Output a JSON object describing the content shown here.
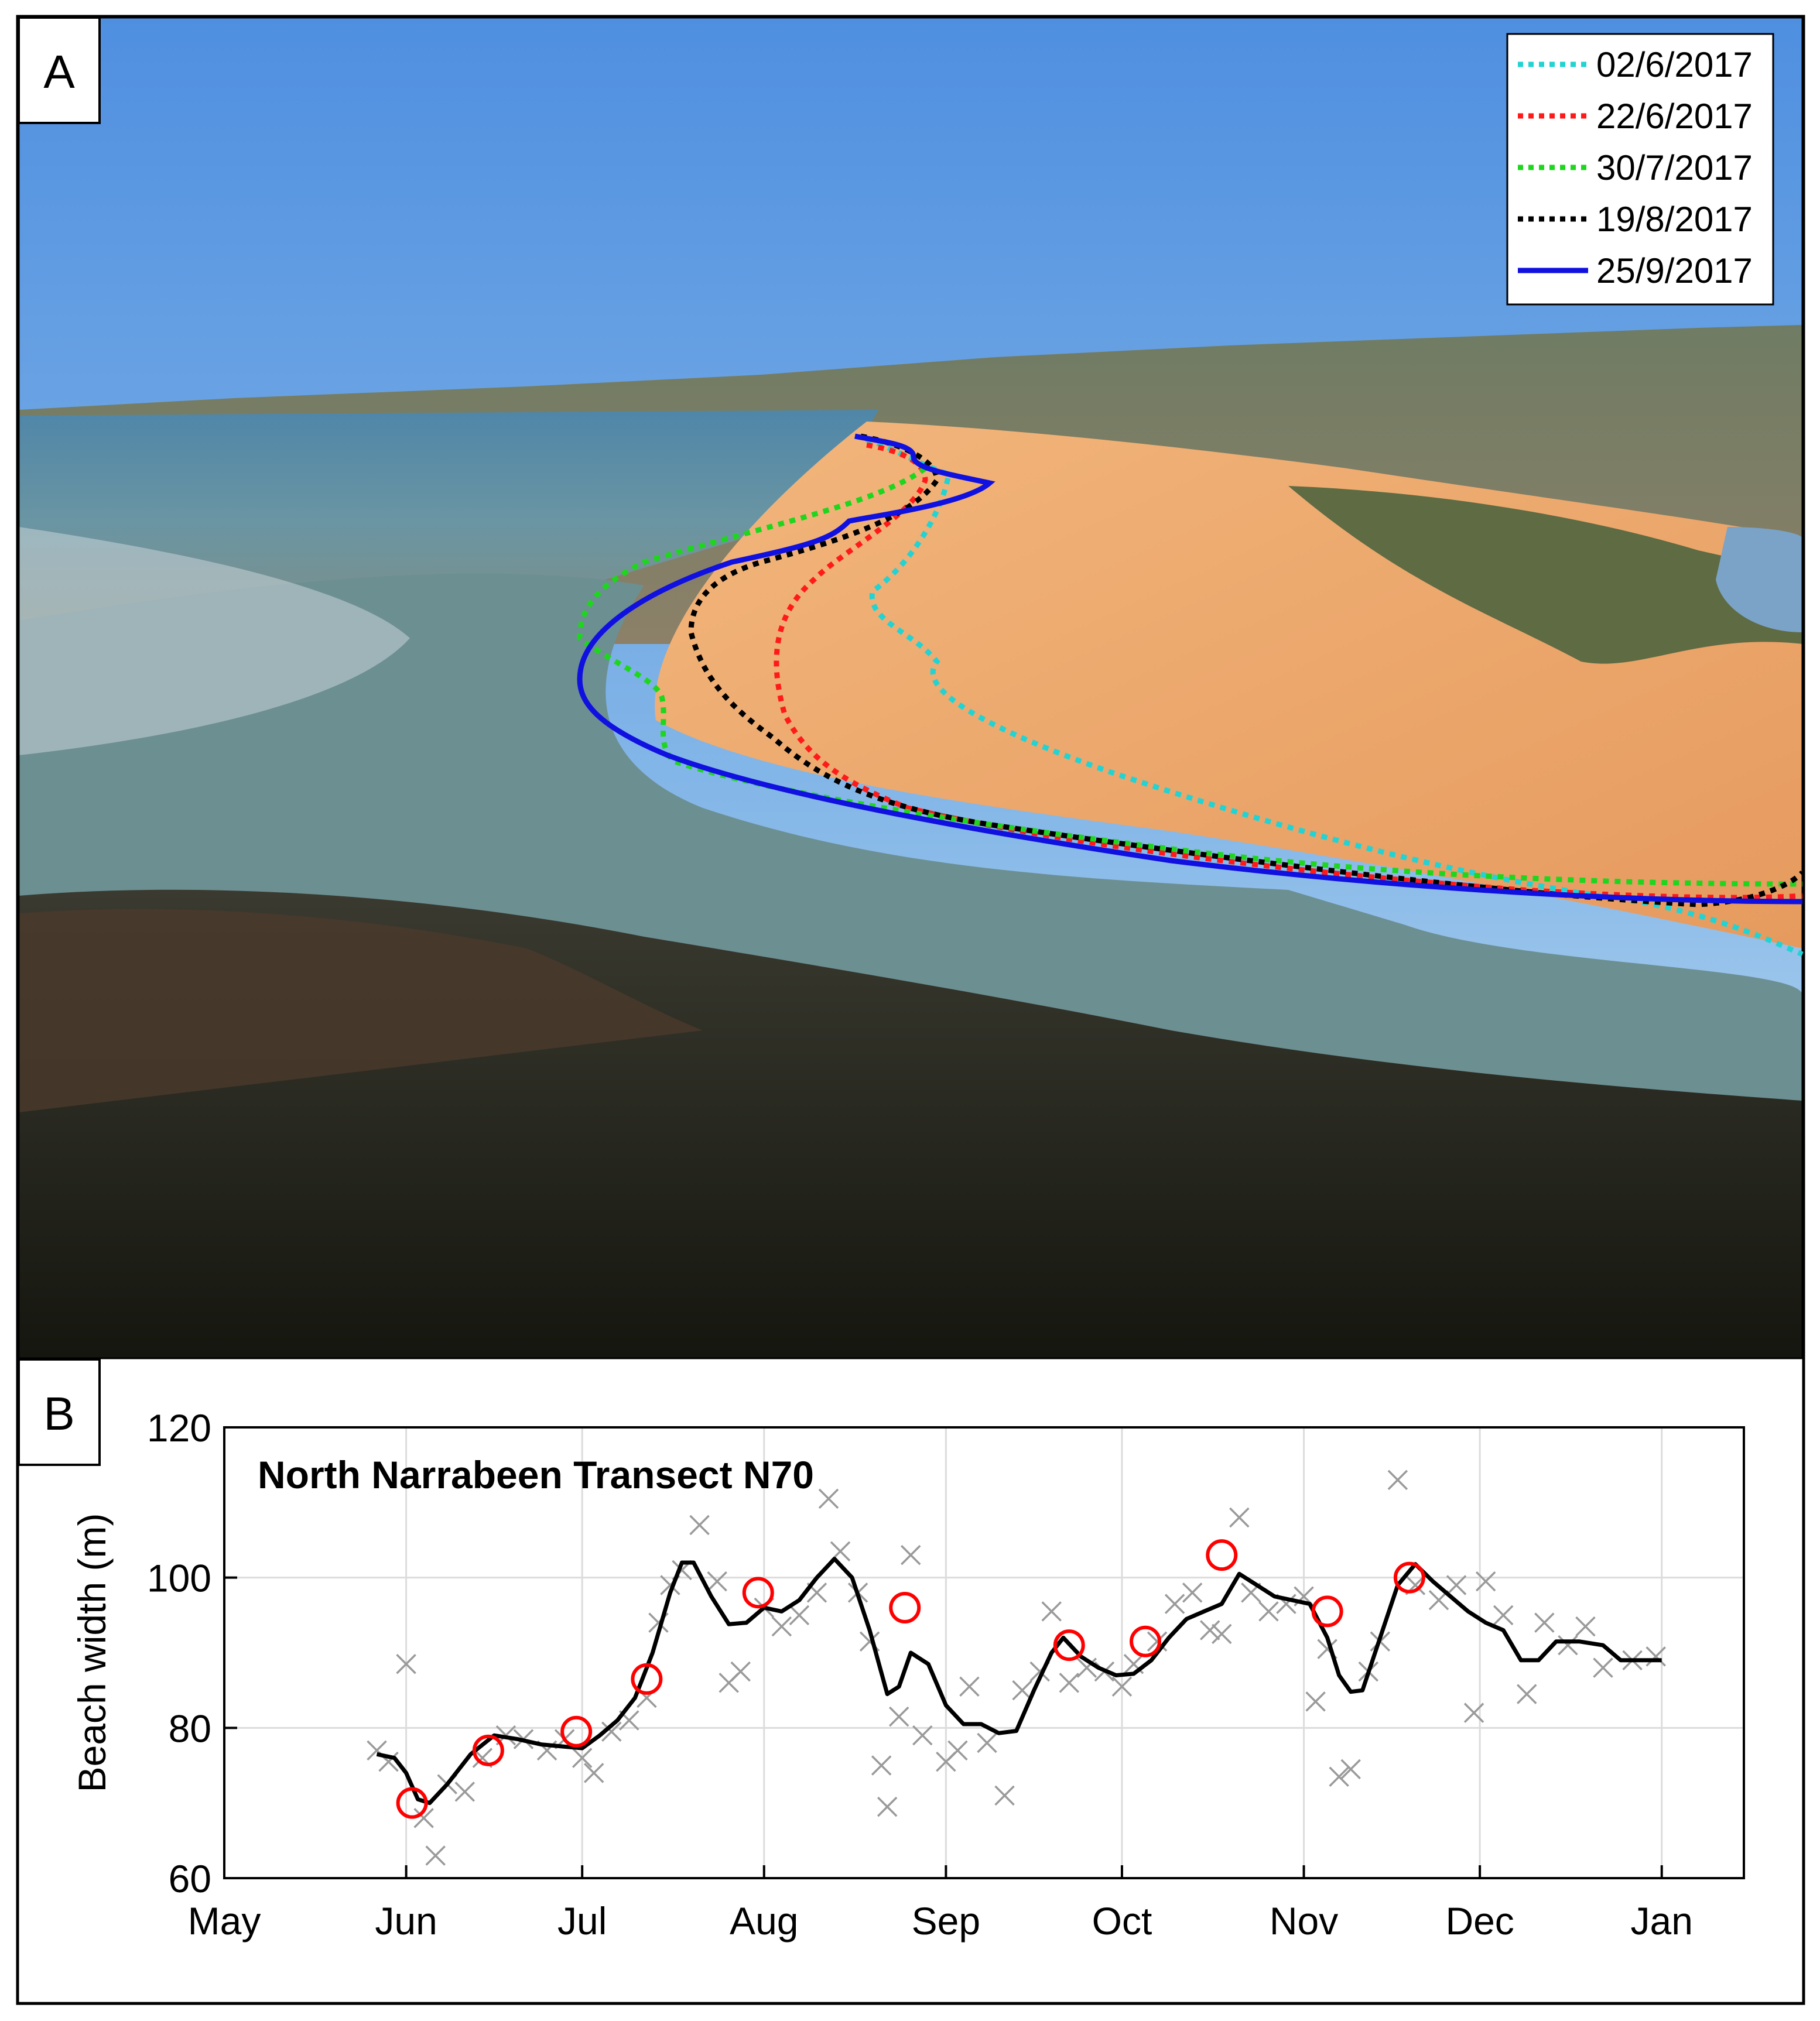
{
  "panel_a": {
    "label": "A",
    "legend": [
      {
        "label": "02/6/2017",
        "color": "#22d3d3",
        "style": "dotted"
      },
      {
        "label": "22/6/2017",
        "color": "#ff1a1a",
        "style": "dotted"
      },
      {
        "label": "30/7/2017",
        "color": "#1ed61e",
        "style": "dotted"
      },
      {
        "label": "19/8/2017",
        "color": "#000000",
        "style": "dotted"
      },
      {
        "label": "25/9/2017",
        "color": "#1010e0",
        "style": "solid"
      }
    ]
  },
  "panel_b": {
    "label": "B"
  },
  "chart_data": {
    "type": "line",
    "title": "North Narrabeen Transect N70",
    "xlabel": "",
    "ylabel": "Beach width (m)",
    "ylim": [
      60,
      120
    ],
    "yticks": [
      60,
      80,
      100,
      120
    ],
    "x_axis": {
      "start": "2017-05-01",
      "end": "2018-01-15",
      "tick_dates": [
        "2017-05-01",
        "2017-06-01",
        "2017-07-01",
        "2017-08-01",
        "2017-09-01",
        "2017-10-01",
        "2017-11-01",
        "2017-12-01",
        "2018-01-01"
      ],
      "tick_labels": [
        "May",
        "Jun",
        "Jul",
        "Aug",
        "Sep",
        "Oct",
        "Nov",
        "Dec",
        "Jan"
      ]
    },
    "grid": true,
    "series": [
      {
        "kind": "line",
        "color": "#000000",
        "points": [
          [
            "2017-05-27",
            76.5
          ],
          [
            "2017-05-30",
            76
          ],
          [
            "2017-06-01",
            74
          ],
          [
            "2017-06-03",
            70.5
          ],
          [
            "2017-06-05",
            70
          ],
          [
            "2017-06-08",
            72.5
          ],
          [
            "2017-06-12",
            76.5
          ],
          [
            "2017-06-16",
            79
          ],
          [
            "2017-06-20",
            78.5
          ],
          [
            "2017-06-24",
            77.8
          ],
          [
            "2017-06-28",
            77.5
          ],
          [
            "2017-07-01",
            77.3
          ],
          [
            "2017-07-04",
            79
          ],
          [
            "2017-07-07",
            81
          ],
          [
            "2017-07-10",
            84
          ],
          [
            "2017-07-13",
            90
          ],
          [
            "2017-07-16",
            98
          ],
          [
            "2017-07-18",
            102
          ],
          [
            "2017-07-20",
            102
          ],
          [
            "2017-07-23",
            97.5
          ],
          [
            "2017-07-26",
            93.8
          ],
          [
            "2017-07-29",
            94
          ],
          [
            "2017-08-01",
            96
          ],
          [
            "2017-08-04",
            95.5
          ],
          [
            "2017-08-07",
            97
          ],
          [
            "2017-08-10",
            100
          ],
          [
            "2017-08-13",
            102.5
          ],
          [
            "2017-08-16",
            100
          ],
          [
            "2017-08-19",
            93
          ],
          [
            "2017-08-22",
            84.5
          ],
          [
            "2017-08-24",
            85.5
          ],
          [
            "2017-08-26",
            90
          ],
          [
            "2017-08-29",
            88.5
          ],
          [
            "2017-09-01",
            83
          ],
          [
            "2017-09-04",
            80.5
          ],
          [
            "2017-09-07",
            80.5
          ],
          [
            "2017-09-10",
            79.3
          ],
          [
            "2017-09-13",
            79.6
          ],
          [
            "2017-09-16",
            85
          ],
          [
            "2017-09-19",
            90
          ],
          [
            "2017-09-21",
            92
          ],
          [
            "2017-09-24",
            89.5
          ],
          [
            "2017-09-27",
            88
          ],
          [
            "2017-09-30",
            87
          ],
          [
            "2017-10-03",
            87.2
          ],
          [
            "2017-10-06",
            89
          ],
          [
            "2017-10-09",
            92
          ],
          [
            "2017-10-12",
            94.5
          ],
          [
            "2017-10-15",
            95.5
          ],
          [
            "2017-10-18",
            96.5
          ],
          [
            "2017-10-21",
            100.5
          ],
          [
            "2017-10-24",
            99
          ],
          [
            "2017-10-27",
            97.5
          ],
          [
            "2017-10-30",
            97
          ],
          [
            "2017-11-02",
            96.5
          ],
          [
            "2017-11-05",
            92
          ],
          [
            "2017-11-07",
            87
          ],
          [
            "2017-11-09",
            84.8
          ],
          [
            "2017-11-11",
            85
          ],
          [
            "2017-11-14",
            92
          ],
          [
            "2017-11-17",
            99
          ],
          [
            "2017-11-20",
            101.8
          ],
          [
            "2017-11-23",
            99.5
          ],
          [
            "2017-11-26",
            97.5
          ],
          [
            "2017-11-29",
            95.5
          ],
          [
            "2017-12-02",
            94
          ],
          [
            "2017-12-05",
            93
          ],
          [
            "2017-12-08",
            89
          ],
          [
            "2017-12-11",
            89
          ],
          [
            "2017-12-14",
            91.5
          ],
          [
            "2017-12-18",
            91.5
          ],
          [
            "2017-12-22",
            91
          ],
          [
            "2017-12-25",
            89
          ],
          [
            "2017-12-29",
            89
          ],
          [
            "2018-01-01",
            89
          ]
        ]
      },
      {
        "kind": "scatter",
        "marker": "circle",
        "color": "#ff0000",
        "points": [
          [
            "2017-06-02",
            70
          ],
          [
            "2017-06-15",
            77
          ],
          [
            "2017-06-30",
            79.5
          ],
          [
            "2017-07-12",
            86.5
          ],
          [
            "2017-07-31",
            98
          ],
          [
            "2017-08-25",
            96
          ],
          [
            "2017-09-22",
            91
          ],
          [
            "2017-10-05",
            91.5
          ],
          [
            "2017-10-18",
            103
          ],
          [
            "2017-11-05",
            95.5
          ],
          [
            "2017-11-19",
            100
          ]
        ]
      },
      {
        "kind": "scatter",
        "marker": "x",
        "color": "#9a9a9a",
        "points": [
          [
            "2017-05-27",
            77
          ],
          [
            "2017-05-29",
            75.5
          ],
          [
            "2017-06-01",
            88.5
          ],
          [
            "2017-06-04",
            68
          ],
          [
            "2017-06-06",
            63
          ],
          [
            "2017-06-08",
            72.5
          ],
          [
            "2017-06-11",
            71.5
          ],
          [
            "2017-06-14",
            76
          ],
          [
            "2017-06-18",
            79
          ],
          [
            "2017-06-21",
            78.5
          ],
          [
            "2017-06-25",
            77
          ],
          [
            "2017-06-28",
            78.5
          ],
          [
            "2017-07-01",
            76
          ],
          [
            "2017-07-03",
            74
          ],
          [
            "2017-07-06",
            79.5
          ],
          [
            "2017-07-09",
            81
          ],
          [
            "2017-07-12",
            84
          ],
          [
            "2017-07-14",
            94
          ],
          [
            "2017-07-16",
            99
          ],
          [
            "2017-07-18",
            101
          ],
          [
            "2017-07-21",
            107
          ],
          [
            "2017-07-24",
            99.5
          ],
          [
            "2017-07-26",
            86
          ],
          [
            "2017-07-28",
            87.5
          ],
          [
            "2017-08-01",
            96
          ],
          [
            "2017-08-04",
            93.5
          ],
          [
            "2017-08-07",
            95
          ],
          [
            "2017-08-10",
            98
          ],
          [
            "2017-08-12",
            110.5
          ],
          [
            "2017-08-14",
            103.5
          ],
          [
            "2017-08-17",
            98
          ],
          [
            "2017-08-19",
            91.5
          ],
          [
            "2017-08-21",
            75
          ],
          [
            "2017-08-22",
            69.5
          ],
          [
            "2017-08-24",
            81.5
          ],
          [
            "2017-08-26",
            103
          ],
          [
            "2017-08-28",
            79
          ],
          [
            "2017-09-01",
            75.5
          ],
          [
            "2017-09-03",
            77
          ],
          [
            "2017-09-05",
            85.5
          ],
          [
            "2017-09-08",
            78
          ],
          [
            "2017-09-11",
            71
          ],
          [
            "2017-09-14",
            85
          ],
          [
            "2017-09-17",
            87.5
          ],
          [
            "2017-09-19",
            95.5
          ],
          [
            "2017-09-22",
            86
          ],
          [
            "2017-09-25",
            88
          ],
          [
            "2017-09-28",
            87.5
          ],
          [
            "2017-10-01",
            85.5
          ],
          [
            "2017-10-03",
            88.5
          ],
          [
            "2017-10-07",
            91.5
          ],
          [
            "2017-10-10",
            96.5
          ],
          [
            "2017-10-13",
            98
          ],
          [
            "2017-10-16",
            93
          ],
          [
            "2017-10-18",
            92.5
          ],
          [
            "2017-10-21",
            108
          ],
          [
            "2017-10-23",
            98
          ],
          [
            "2017-10-26",
            95.5
          ],
          [
            "2017-10-29",
            96.5
          ],
          [
            "2017-11-01",
            97.5
          ],
          [
            "2017-11-03",
            83.5
          ],
          [
            "2017-11-05",
            90.5
          ],
          [
            "2017-11-07",
            73.5
          ],
          [
            "2017-11-09",
            74.5
          ],
          [
            "2017-11-12",
            87.5
          ],
          [
            "2017-11-14",
            91.5
          ],
          [
            "2017-11-17",
            113
          ],
          [
            "2017-11-20",
            99
          ],
          [
            "2017-11-24",
            97
          ],
          [
            "2017-11-27",
            99
          ],
          [
            "2017-11-30",
            82
          ],
          [
            "2017-12-02",
            99.5
          ],
          [
            "2017-12-05",
            95
          ],
          [
            "2017-12-09",
            84.5
          ],
          [
            "2017-12-12",
            94
          ],
          [
            "2017-12-16",
            91
          ],
          [
            "2017-12-19",
            93.5
          ],
          [
            "2017-12-22",
            88
          ],
          [
            "2017-12-27",
            89
          ],
          [
            "2017-12-31",
            89.5
          ]
        ]
      }
    ]
  }
}
